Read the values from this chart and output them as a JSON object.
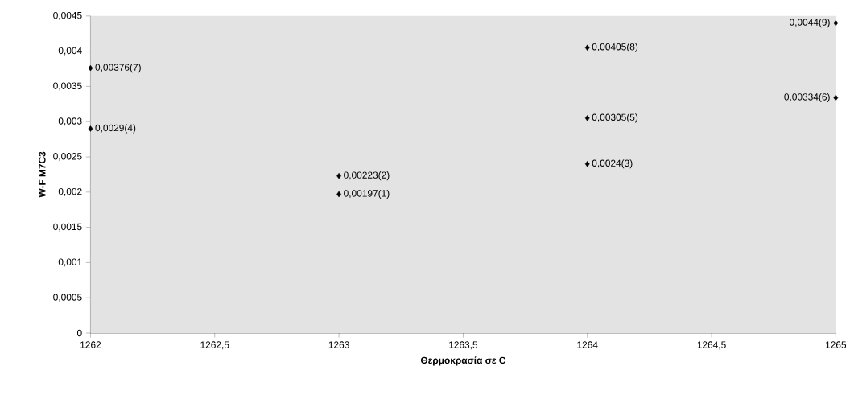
{
  "chart_data": {
    "type": "scatter",
    "xlabel": "Θερμοκρασία σε C",
    "ylabel": "W-F M7C3",
    "x": [
      1263,
      1263,
      1264,
      1262,
      1264,
      1265,
      1262,
      1264,
      1265
    ],
    "series": [
      {
        "color": "#000000",
        "values": [
          0.00197,
          0.00223,
          0.0024,
          0.0029,
          0.00305,
          0.00334,
          0.00376,
          0.00405,
          0.0044
        ],
        "value_labels": [
          "0,00197(1)",
          "0,00223(2)",
          "0,0024(3)",
          "0,0029(4)",
          "0,00305(5)",
          "0,00334(6)",
          "0,00376(7)",
          "0,00405(8)",
          "0,0044(9)"
        ]
      }
    ],
    "marker": "diamond",
    "xlim": [
      1262,
      1265
    ],
    "ylim": [
      0,
      0.0045
    ],
    "xticks": [
      1262,
      {
        "value": 1262.5,
        "label": "1262,5"
      },
      1263,
      {
        "value": 1263.5,
        "label": "1263,5"
      },
      1264,
      {
        "value": 1264.5,
        "label": "1264,5"
      },
      1265
    ],
    "yticks": [
      0,
      {
        "value": 0.0005,
        "label": "0,0005"
      },
      {
        "value": 0.001,
        "label": "0,001"
      },
      {
        "value": 0.0015,
        "label": "0,0015"
      },
      {
        "value": 0.002,
        "label": "0,002"
      },
      {
        "value": 0.0025,
        "label": "0,0025"
      },
      {
        "value": 0.003,
        "label": "0,003"
      },
      {
        "value": 0.0035,
        "label": "0,0035"
      },
      {
        "value": 0.004,
        "label": "0,004"
      },
      {
        "value": 0.0045,
        "label": "0,0045"
      }
    ]
  }
}
